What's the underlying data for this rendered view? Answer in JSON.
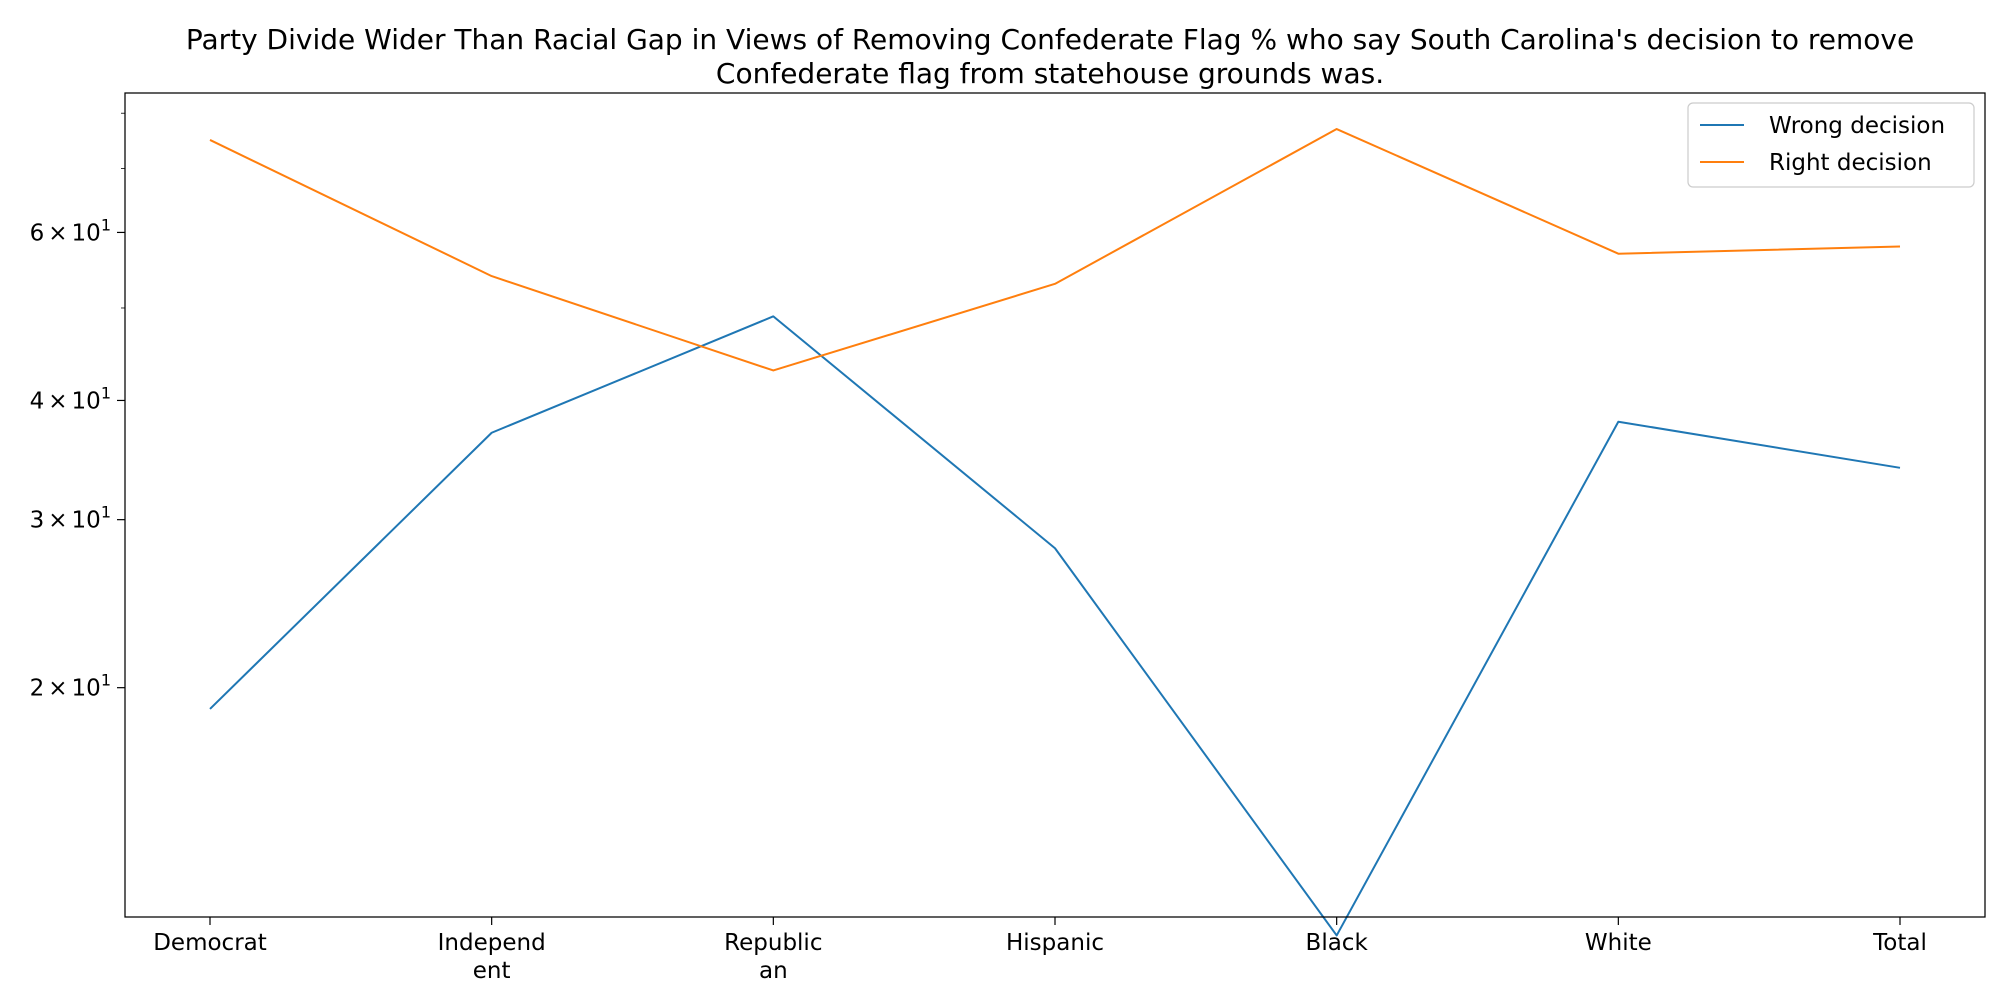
{
  "chart_data": {
    "type": "line",
    "title_lines": [
      "Party Divide Wider Than Racial Gap in Views of Removing Confederate Flag % who say South Carolina's decision to remove",
      "Confederate flag from statehouse grounds was."
    ],
    "xlabel": "",
    "ylabel": "",
    "yscale": "log",
    "ylim": [
      11.5,
      84
    ],
    "grid": false,
    "legend_position": "upper-right",
    "categories": [
      "Democrat",
      "Independent",
      "Republican",
      "Hispanic",
      "Black",
      "White",
      "Total"
    ],
    "category_tick_lines": [
      [
        "Democrat"
      ],
      [
        "Independ",
        "ent"
      ],
      [
        "Republic",
        "an"
      ],
      [
        "Hispanic"
      ],
      [
        "Black"
      ],
      [
        "White"
      ],
      [
        "Total"
      ]
    ],
    "y_ticks": [
      {
        "value": 20,
        "base": "2",
        "exp": "1"
      },
      {
        "value": 30,
        "base": "3",
        "exp": "1"
      },
      {
        "value": 40,
        "base": "4",
        "exp": "1"
      },
      {
        "value": 60,
        "base": "6",
        "exp": "1"
      }
    ],
    "y_minor_ticks": [
      50,
      70,
      80
    ],
    "series": [
      {
        "name": "Wrong decision",
        "color": "#1f77b4",
        "values": [
          19,
          37,
          49,
          28,
          11,
          38,
          34
        ]
      },
      {
        "name": "Right decision",
        "color": "#ff7f0e",
        "values": [
          75,
          54,
          43,
          53,
          77,
          57,
          58
        ]
      }
    ]
  }
}
